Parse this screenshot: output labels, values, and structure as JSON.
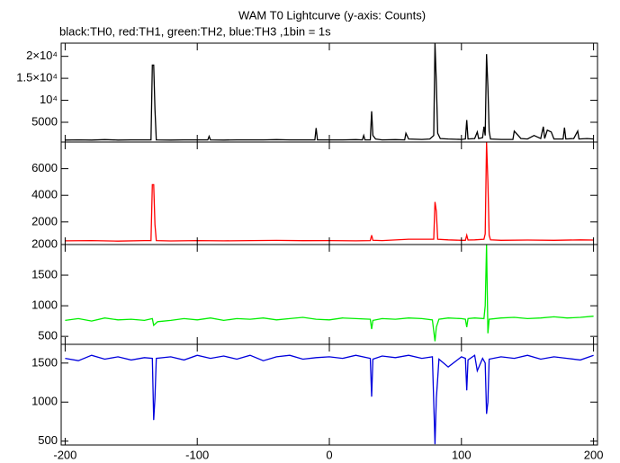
{
  "title": "WAM T0 Lightcurve (y-axis: Counts)",
  "subtitle": "black:TH0, red:TH1, green:TH2, blue:TH3 ,1bin = 1s",
  "chart_data": [
    {
      "type": "line",
      "color": "#000000",
      "xlim": [
        -203,
        203
      ],
      "xticks": [
        -200,
        -100,
        0,
        100,
        200
      ],
      "ylim": [
        500,
        23000
      ],
      "yticks": [
        5000,
        {
          "value": 10000,
          "label": "10⁴"
        },
        {
          "value": 15000,
          "label": "1.5×10⁴"
        },
        {
          "value": 20000,
          "label": "2×10⁴"
        }
      ],
      "x": [
        -200,
        -190,
        -180,
        -170,
        -160,
        -150,
        -140,
        -135,
        -134,
        -133,
        -132,
        -131,
        -120,
        -110,
        -100,
        -92,
        -91,
        -90,
        -80,
        -70,
        -60,
        -50,
        -40,
        -30,
        -20,
        -11,
        -10,
        -9,
        0,
        10,
        20,
        25,
        26,
        27,
        31,
        32,
        33,
        35,
        40,
        50,
        57,
        58,
        60,
        70,
        76,
        79,
        80,
        81,
        82,
        84,
        90,
        100,
        103,
        104,
        105,
        110,
        112,
        113,
        116,
        117,
        118,
        119,
        120,
        121,
        122,
        130,
        139,
        140,
        145,
        150,
        155,
        160,
        162,
        163,
        165,
        168,
        170,
        177,
        178,
        179,
        185,
        188,
        189,
        195,
        200
      ],
      "values": [
        950,
        1000,
        950,
        1050,
        950,
        1000,
        1000,
        1000,
        18000,
        18000,
        8000,
        1000,
        950,
        1000,
        1000,
        1000,
        1800,
        1000,
        950,
        1000,
        1000,
        1000,
        1050,
        1000,
        1000,
        1000,
        3700,
        1000,
        1000,
        1000,
        1050,
        1000,
        2000,
        1000,
        1000,
        7500,
        2000,
        1200,
        1000,
        1050,
        1000,
        2500,
        1200,
        1100,
        1200,
        2000,
        23000,
        14000,
        2500,
        1300,
        1200,
        1100,
        1200,
        5500,
        1200,
        1300,
        2800,
        1300,
        1500,
        4000,
        2000,
        20500,
        13000,
        3000,
        1200,
        1100,
        1100,
        3000,
        1300,
        1200,
        2000,
        1300,
        4000,
        1300,
        3200,
        2800,
        1200,
        1200,
        3800,
        1200,
        1300,
        3000,
        1200,
        1300,
        1200
      ]
    },
    {
      "type": "line",
      "color": "#ff0000",
      "xlim": [
        -203,
        203
      ],
      "xticks": [
        -200,
        -100,
        0,
        100,
        200
      ],
      "ylim": [
        300,
        8000
      ],
      "yticks": [
        2000,
        4000,
        6000
      ],
      "x": [
        -200,
        -180,
        -160,
        -140,
        -135,
        -134,
        -133,
        -132,
        -131,
        -120,
        -100,
        -80,
        -60,
        -40,
        -20,
        0,
        20,
        31,
        32,
        33,
        40,
        60,
        79,
        80,
        81,
        82,
        90,
        100,
        103,
        104,
        105,
        110,
        117,
        118,
        119,
        120,
        121,
        122,
        130,
        150,
        170,
        190,
        200
      ],
      "values": [
        580,
        600,
        560,
        600,
        600,
        4800,
        4800,
        1800,
        600,
        570,
        600,
        580,
        600,
        610,
        590,
        600,
        580,
        600,
        1000,
        620,
        600,
        700,
        700,
        3500,
        2800,
        700,
        650,
        620,
        620,
        1000,
        640,
        650,
        700,
        1100,
        8000,
        5000,
        1000,
        650,
        620,
        640,
        620,
        650,
        640
      ]
    },
    {
      "type": "line",
      "color": "#00ee00",
      "xlim": [
        -203,
        203
      ],
      "xticks": [
        -200,
        -100,
        0,
        100,
        200
      ],
      "ylim": [
        370,
        2000
      ],
      "yticks": [
        500,
        1000,
        1500,
        2000
      ],
      "x": [
        -200,
        -190,
        -180,
        -170,
        -160,
        -150,
        -140,
        -134,
        -133,
        -130,
        -120,
        -110,
        -100,
        -90,
        -80,
        -70,
        -60,
        -50,
        -40,
        -30,
        -20,
        -10,
        0,
        10,
        20,
        31,
        32,
        33,
        40,
        50,
        60,
        70,
        78,
        80,
        81,
        83,
        90,
        100,
        103,
        104,
        105,
        110,
        117,
        118,
        119,
        120,
        121,
        130,
        140,
        150,
        160,
        170,
        180,
        190,
        200
      ],
      "values": [
        760,
        790,
        750,
        800,
        770,
        780,
        760,
        790,
        680,
        740,
        760,
        790,
        770,
        800,
        760,
        790,
        780,
        800,
        770,
        790,
        810,
        780,
        770,
        800,
        790,
        780,
        620,
        760,
        790,
        780,
        800,
        790,
        770,
        420,
        650,
        780,
        800,
        790,
        780,
        650,
        790,
        800,
        790,
        1000,
        2000,
        550,
        780,
        800,
        810,
        790,
        800,
        820,
        800,
        810,
        830
      ]
    },
    {
      "type": "line",
      "color": "#0000dd",
      "xlim": [
        -203,
        203
      ],
      "xticks": [
        -200,
        -100,
        0,
        100,
        200
      ],
      "ylim": [
        450,
        1740
      ],
      "yticks": [
        500,
        1000,
        1500
      ],
      "x": [
        -200,
        -190,
        -180,
        -170,
        -160,
        -150,
        -140,
        -134,
        -133,
        -132,
        -131,
        -120,
        -110,
        -100,
        -90,
        -80,
        -70,
        -60,
        -50,
        -40,
        -30,
        -20,
        -10,
        0,
        10,
        20,
        31,
        32,
        33,
        40,
        50,
        60,
        70,
        78,
        80,
        81,
        82,
        83,
        90,
        100,
        103,
        104,
        105,
        110,
        112,
        116,
        118,
        119,
        120,
        121,
        130,
        140,
        150,
        160,
        170,
        180,
        190,
        200
      ],
      "values": [
        1560,
        1530,
        1600,
        1550,
        1580,
        1540,
        1570,
        1560,
        770,
        1050,
        1560,
        1580,
        1540,
        1600,
        1560,
        1590,
        1550,
        1600,
        1530,
        1580,
        1600,
        1550,
        1570,
        1580,
        1560,
        1600,
        1560,
        1070,
        1550,
        1590,
        1570,
        1600,
        1560,
        1580,
        460,
        1050,
        1300,
        1550,
        1450,
        1580,
        1560,
        1150,
        1540,
        1600,
        1400,
        1560,
        1500,
        850,
        1000,
        1550,
        1580,
        1560,
        1600,
        1550,
        1580,
        1560,
        1540,
        1600
      ]
    }
  ]
}
